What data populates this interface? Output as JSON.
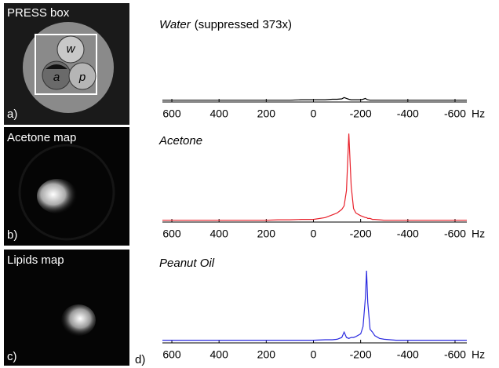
{
  "chart_data": [
    {
      "type": "line",
      "title": "Water",
      "subtitle": "(suppressed 373x)",
      "x_label": "Hz",
      "x": [
        640,
        600,
        550,
        500,
        450,
        400,
        350,
        300,
        250,
        200,
        150,
        100,
        50,
        0,
        -50,
        -80,
        -100,
        -120,
        -130,
        -140,
        -150,
        -160,
        -170,
        -180,
        -200,
        -210,
        -220,
        -225,
        -230,
        -240,
        -250,
        -260,
        -280,
        -300,
        -350,
        -400,
        -450,
        -500,
        -550,
        -600,
        -650
      ],
      "series": [
        {
          "color": "#000000",
          "values": [
            2,
            2,
            2,
            2,
            2,
            2,
            2,
            2,
            2,
            2,
            2,
            2,
            2.5,
            2.5,
            2.5,
            3,
            3,
            3.5,
            5,
            4,
            3,
            2.5,
            2.5,
            2.5,
            2.5,
            3,
            4,
            3,
            2.5,
            2,
            2,
            2,
            2,
            2,
            2,
            2,
            2,
            2,
            2,
            2,
            2
          ]
        }
      ],
      "xlim": [
        640,
        -650
      ],
      "xticks": [
        600,
        400,
        200,
        0,
        -200,
        -400,
        -600
      ],
      "ylim": [
        0,
        100
      ]
    },
    {
      "type": "line",
      "title": "Acetone",
      "x_label": "Hz",
      "x": [
        640,
        600,
        550,
        500,
        450,
        400,
        350,
        300,
        250,
        200,
        150,
        100,
        50,
        0,
        -50,
        -80,
        -100,
        -120,
        -130,
        -140,
        -150,
        -160,
        -170,
        -180,
        -200,
        -210,
        -220,
        -225,
        -230,
        -240,
        -250,
        -260,
        -280,
        -300,
        -350,
        -400,
        -450,
        -500,
        -550,
        -600,
        -650
      ],
      "series": [
        {
          "color": "#e8202a",
          "values": [
            2,
            2,
            2,
            2,
            2,
            2,
            2,
            2,
            2,
            2,
            2.5,
            2.5,
            3,
            3,
            5,
            8,
            10,
            14,
            18,
            35,
            98,
            40,
            15,
            10,
            7,
            6,
            5,
            5,
            4,
            4,
            3,
            3,
            2.5,
            2,
            2,
            2,
            2,
            2,
            2,
            2,
            2
          ]
        }
      ],
      "xlim": [
        640,
        -650
      ],
      "xticks": [
        600,
        400,
        200,
        0,
        -200,
        -400,
        -600
      ],
      "ylim": [
        0,
        100
      ]
    },
    {
      "type": "line",
      "title": "Peanut Oil",
      "x_label": "Hz",
      "x": [
        640,
        600,
        550,
        500,
        450,
        400,
        350,
        300,
        250,
        200,
        150,
        100,
        50,
        0,
        -50,
        -80,
        -100,
        -120,
        -130,
        -140,
        -150,
        -160,
        -170,
        -180,
        -200,
        -210,
        -220,
        -225,
        -230,
        -240,
        -250,
        -260,
        -280,
        -300,
        -350,
        -400,
        -450,
        -500,
        -550,
        -600,
        -650
      ],
      "series": [
        {
          "color": "#2a2ae0",
          "values": [
            3,
            3,
            3,
            3,
            3,
            3,
            3,
            3,
            3,
            3,
            3,
            3,
            3,
            3,
            3.5,
            3.5,
            4,
            6,
            12,
            6,
            5,
            6,
            6,
            7,
            10,
            18,
            50,
            80,
            45,
            15,
            12,
            8,
            5,
            4,
            3,
            3,
            3,
            3,
            3,
            3,
            3
          ]
        }
      ],
      "xlim": [
        640,
        -650
      ],
      "xticks": [
        600,
        400,
        200,
        0,
        -200,
        -400,
        -600
      ],
      "ylim": [
        0,
        100
      ]
    }
  ],
  "images": [
    {
      "title": "PRESS box",
      "tag": "a)",
      "markers": [
        "w",
        "a",
        "p"
      ]
    },
    {
      "title": "Acetone map",
      "tag": "b)"
    },
    {
      "title": "Lipids map",
      "tag": "c)"
    }
  ],
  "panel_label": "d)"
}
